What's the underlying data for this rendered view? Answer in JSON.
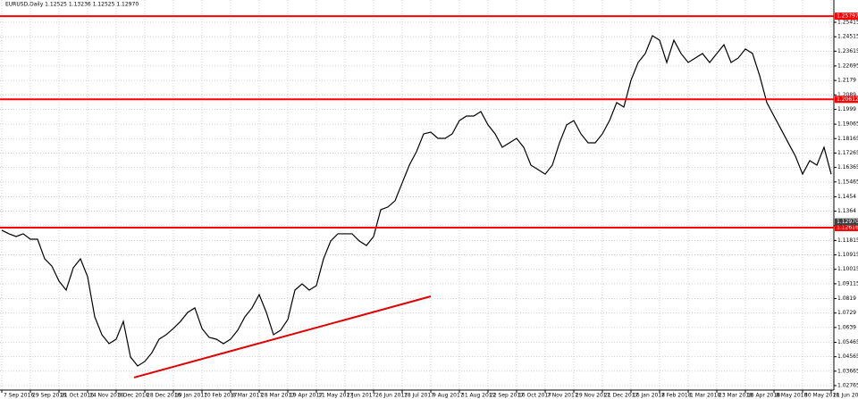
{
  "chart_data": {
    "type": "line",
    "title": "EURUSD,Daily  1.12525 1.13236 1.12525 1.12970",
    "series": [
      {
        "name": "EURUSD",
        "color": "#000000",
        "values": [
          1.1245,
          1.1223,
          1.1206,
          1.1223,
          1.1189,
          1.1189,
          1.1067,
          1.1022,
          1.0928,
          1.0872,
          1.1011,
          1.1067,
          1.0956,
          1.0705,
          1.0594,
          1.0538,
          1.0566,
          1.0677,
          1.0455,
          1.0399,
          1.0427,
          1.0482,
          1.0566,
          1.0594,
          1.0633,
          1.0677,
          1.0733,
          1.0761,
          1.0633,
          1.0577,
          1.0566,
          1.0538,
          1.0566,
          1.0622,
          1.0705,
          1.0761,
          1.0844,
          1.0733,
          1.0594,
          1.0622,
          1.0688,
          1.0872,
          1.0911,
          1.0872,
          1.09,
          1.1067,
          1.1178,
          1.1223,
          1.1223,
          1.1223,
          1.1178,
          1.115,
          1.1206,
          1.1373,
          1.139,
          1.1429,
          1.154,
          1.1651,
          1.1735,
          1.1846,
          1.1857,
          1.1818,
          1.1818,
          1.1846,
          1.1929,
          1.1957,
          1.1957,
          1.1985,
          1.1902,
          1.1846,
          1.1762,
          1.179,
          1.1818,
          1.1762,
          1.1651,
          1.1623,
          1.1595,
          1.1651,
          1.179,
          1.1902,
          1.1929,
          1.1846,
          1.179,
          1.179,
          1.1846,
          1.1929,
          1.2041,
          1.2013,
          1.218,
          1.2291,
          1.2347,
          1.2458,
          1.243,
          1.2291,
          1.243,
          1.2347,
          1.2291,
          1.2319,
          1.2347,
          1.2291,
          1.2347,
          1.2402,
          1.2291,
          1.2319,
          1.2375,
          1.2347,
          1.2208,
          1.2041,
          1.1957,
          1.1874,
          1.179,
          1.1707,
          1.1595,
          1.1679,
          1.1651,
          1.1762,
          1.1595
        ]
      }
    ],
    "xlim": [
      0,
      116
    ],
    "xticks": [
      {
        "value": 0,
        "label": "7 Sep 2016"
      },
      {
        "value": 4,
        "label": "29 Sep 2016"
      },
      {
        "value": 8,
        "label": "21 Oct 2016"
      },
      {
        "value": 12,
        "label": "14 Nov 2016"
      },
      {
        "value": 16,
        "label": "6 Dec 2016"
      },
      {
        "value": 20,
        "label": "28 Dec 2016"
      },
      {
        "value": 24,
        "label": "19 Jan 2017"
      },
      {
        "value": 28,
        "label": "10 Feb 2017"
      },
      {
        "value": 32,
        "label": "6 Mar 2017"
      },
      {
        "value": 36,
        "label": "28 Mar 2017"
      },
      {
        "value": 40,
        "label": "19 Apr 2017"
      },
      {
        "value": 44,
        "label": "11 May 2017"
      },
      {
        "value": 48,
        "label": "2 Jun 2017"
      },
      {
        "value": 52,
        "label": "26 Jun 2017"
      },
      {
        "value": 56,
        "label": "18 Jul 2017"
      },
      {
        "value": 60,
        "label": "9 Aug 2017"
      },
      {
        "value": 64,
        "label": "31 Aug 2017"
      },
      {
        "value": 68,
        "label": "22 Sep 2017"
      },
      {
        "value": 72,
        "label": "16 Oct 2017"
      },
      {
        "value": 76,
        "label": "7 Nov 2017"
      },
      {
        "value": 80,
        "label": "29 Nov 2017"
      },
      {
        "value": 84,
        "label": "21 Dec 2017"
      },
      {
        "value": 88,
        "label": "16 Jan 2018"
      },
      {
        "value": 92,
        "label": "7 Feb 2018"
      },
      {
        "value": 96,
        "label": "1 Mar 2018"
      },
      {
        "value": 100,
        "label": "23 Mar 2018"
      },
      {
        "value": 104,
        "label": "16 Apr 2018"
      },
      {
        "value": 108,
        "label": "8 May 2018"
      },
      {
        "value": 112,
        "label": "30 May 2018"
      },
      {
        "value": 116,
        "label": "21 Jun 2018"
      }
    ],
    "ylim": [
      1.02487,
      1.26806
    ],
    "yticks": [
      1.02765,
      1.03665,
      1.04565,
      1.05465,
      1.0639,
      1.0729,
      1.0819,
      1.09115,
      1.10015,
      1.10915,
      1.11815,
      1.1274,
      1.1364,
      1.1454,
      1.15465,
      1.16365,
      1.17265,
      1.18165,
      1.19065,
      1.1999,
      1.2089,
      1.2179,
      1.22695,
      1.23615,
      1.24515,
      1.25415
    ],
    "grid": true,
    "levels": [
      {
        "value": 1.25797,
        "label": "1.25797",
        "color": "#ff0000"
      },
      {
        "value": 1.20612,
        "label": "1.20612",
        "color": "#ff0000"
      },
      {
        "value": 1.12616,
        "label": "1.12616",
        "color": "#ff0000"
      }
    ],
    "current_price": {
      "value": 1.1297,
      "label": "1.12970"
    },
    "trendline": {
      "x": [
        18.5,
        60
      ],
      "y": [
        1.0327,
        1.0833
      ],
      "color": "#e00000"
    }
  }
}
